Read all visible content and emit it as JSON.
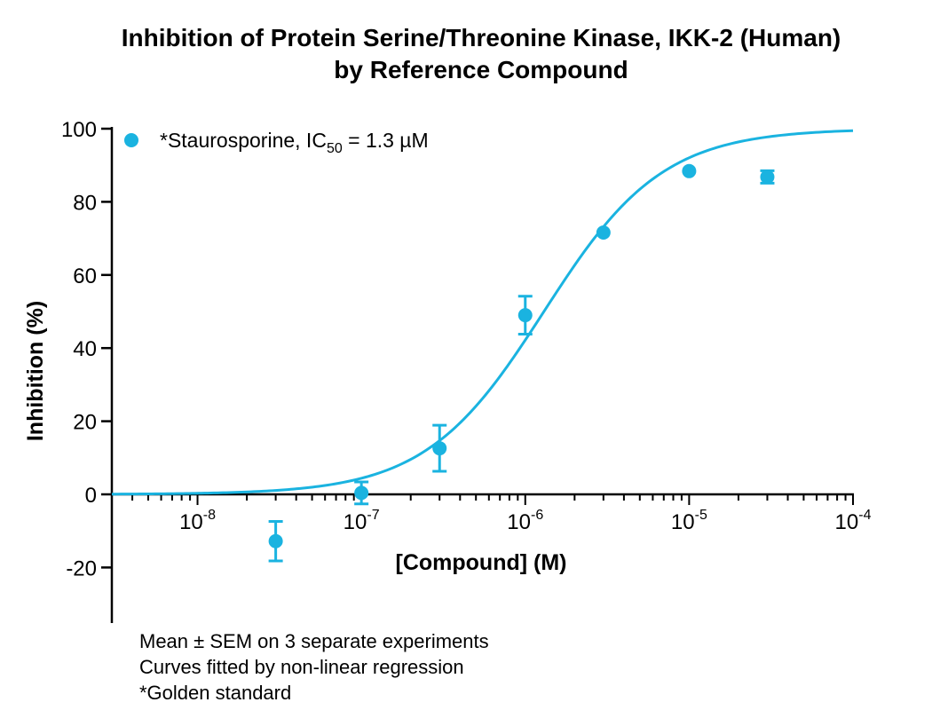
{
  "chart_data": {
    "type": "scatter",
    "title_lines": [
      "Inhibition of Protein Serine/Threonine Kinase, IKK-2 (Human)",
      "by Reference Compound"
    ],
    "xlabel": "[Compound] (M)",
    "ylabel": "Inhibition (%)",
    "xscale": "log",
    "xlim": [
      3e-09,
      0.0001
    ],
    "ylim": [
      -35,
      100
    ],
    "y_ticks": [
      "100",
      "80",
      "60",
      "40",
      "20",
      "0",
      "-20"
    ],
    "x_ticks": [
      {
        "base": "10",
        "exp": "-8"
      },
      {
        "base": "10",
        "exp": "-7"
      },
      {
        "base": "10",
        "exp": "-6"
      },
      {
        "base": "10",
        "exp": "-5"
      },
      {
        "base": "10",
        "exp": "-4"
      }
    ],
    "series": [
      {
        "legend_prefix": "*Staurosporine, IC",
        "legend_sub": "50",
        "legend_suffix": " = 1.3 µM",
        "color": "#1ab3e0",
        "x": [
          3e-08,
          1e-07,
          3e-07,
          1e-06,
          3e-06,
          1e-05,
          3e-05
        ],
        "y": [
          -12.8,
          0.4,
          12.6,
          49.0,
          71.6,
          88.4,
          86.8
        ],
        "sem": [
          5.4,
          3.0,
          6.3,
          5.2,
          0.5,
          0.5,
          1.7
        ],
        "fit": {
          "model": "4PL",
          "ic50": 1.3e-06,
          "hill": 1.2,
          "bottom": 0,
          "top": 100
        }
      }
    ],
    "legend_position": "top-left",
    "grid": false
  },
  "notes": {
    "line1_prefix": "Mean ",
    "line1_symbol": "±",
    "line1_suffix": " SEM on 3 separate experiments",
    "line2": "Curves fitted by non-linear regression",
    "line3": "*Golden standard"
  }
}
